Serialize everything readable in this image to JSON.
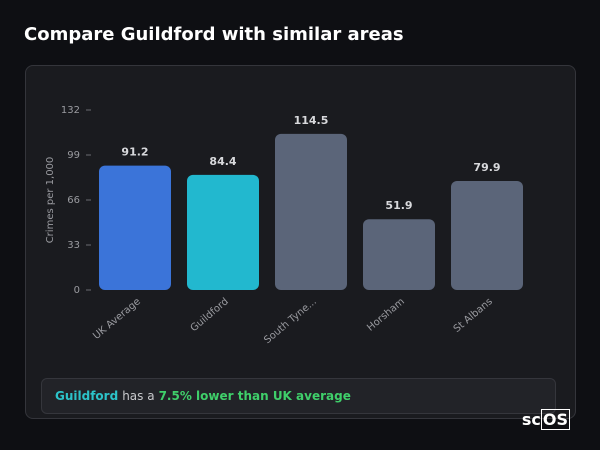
{
  "header": {
    "title": "Compare Guildford with similar areas"
  },
  "chart_data": {
    "type": "bar",
    "y_label": "Crimes per 1,000",
    "categories": [
      "UK Average",
      "Guildford",
      "South Tyne...",
      "Horsham",
      "St Albans"
    ],
    "values": [
      91.2,
      84.4,
      114.5,
      51.9,
      79.9
    ],
    "colors": [
      "#3b74d9",
      "#22b8cf",
      "#5b6579",
      "#5b6579",
      "#5b6579"
    ],
    "ylim": [
      0,
      132
    ],
    "yticks": [
      0,
      33,
      66,
      99,
      132
    ]
  },
  "summary": {
    "area": "Guildford",
    "text": "has a",
    "highlight": "7.5% lower than UK average"
  },
  "logo": {
    "prefix": "sc",
    "boxed": "OS"
  }
}
